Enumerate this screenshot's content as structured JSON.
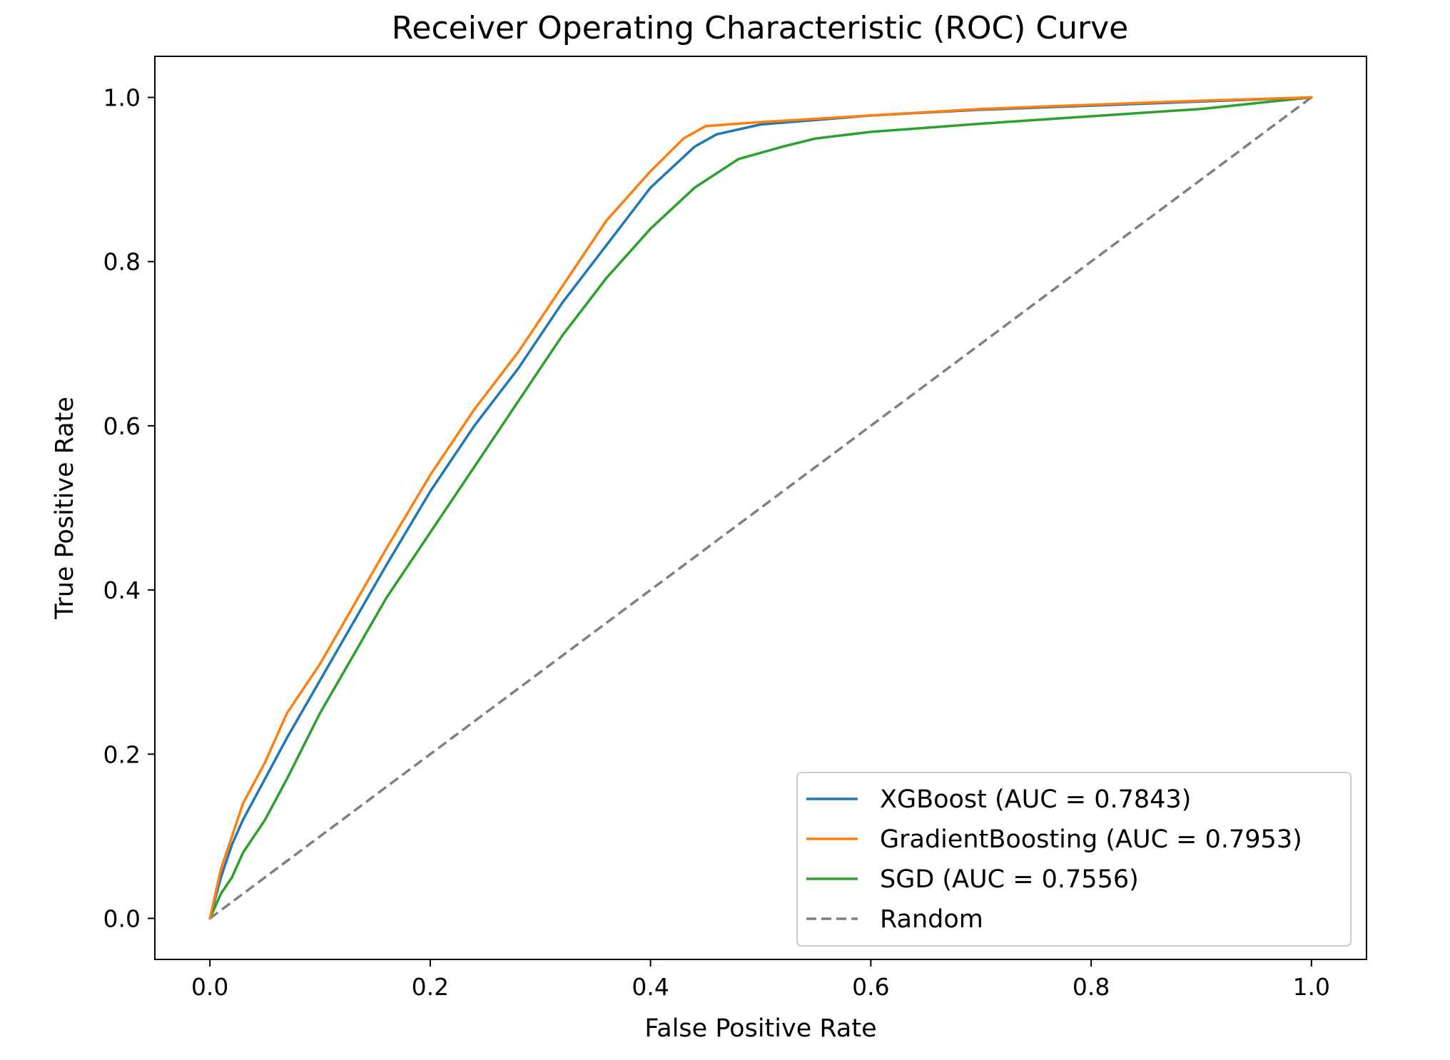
{
  "chart_data": {
    "type": "line",
    "title": "Receiver Operating Characteristic (ROC) Curve",
    "xlabel": "False Positive Rate",
    "ylabel": "True Positive Rate",
    "xlim": [
      -0.05,
      1.05
    ],
    "ylim": [
      -0.05,
      1.05
    ],
    "xticks": [
      0.0,
      0.2,
      0.4,
      0.6,
      0.8,
      1.0
    ],
    "yticks": [
      0.0,
      0.2,
      0.4,
      0.6,
      0.8,
      1.0
    ],
    "xtick_labels": [
      "0.0",
      "0.2",
      "0.4",
      "0.6",
      "0.8",
      "1.0"
    ],
    "ytick_labels": [
      "0.0",
      "0.2",
      "0.4",
      "0.6",
      "0.8",
      "1.0"
    ],
    "grid": false,
    "legend_position": "lower-right",
    "series": [
      {
        "name": "XGBoost (AUC = 0.7843)",
        "color": "#1f77b4",
        "style": "solid",
        "x": [
          0.0,
          0.01,
          0.02,
          0.03,
          0.05,
          0.07,
          0.1,
          0.13,
          0.16,
          0.2,
          0.24,
          0.28,
          0.32,
          0.36,
          0.4,
          0.44,
          0.46,
          0.5,
          0.6,
          0.7,
          0.8,
          0.9,
          1.0
        ],
        "y": [
          0.0,
          0.05,
          0.09,
          0.12,
          0.17,
          0.22,
          0.29,
          0.36,
          0.43,
          0.52,
          0.6,
          0.67,
          0.75,
          0.82,
          0.89,
          0.94,
          0.955,
          0.967,
          0.978,
          0.985,
          0.99,
          0.995,
          1.0
        ]
      },
      {
        "name": "GradientBoosting (AUC = 0.7953)",
        "color": "#ff7f0e",
        "style": "solid",
        "x": [
          0.0,
          0.01,
          0.02,
          0.03,
          0.05,
          0.07,
          0.1,
          0.13,
          0.16,
          0.2,
          0.24,
          0.28,
          0.32,
          0.36,
          0.4,
          0.43,
          0.45,
          0.5,
          0.6,
          0.7,
          0.8,
          0.9,
          1.0
        ],
        "y": [
          0.0,
          0.06,
          0.1,
          0.14,
          0.19,
          0.25,
          0.31,
          0.38,
          0.45,
          0.54,
          0.62,
          0.69,
          0.77,
          0.85,
          0.91,
          0.95,
          0.965,
          0.97,
          0.978,
          0.986,
          0.991,
          0.996,
          1.0
        ]
      },
      {
        "name": "SGD (AUC = 0.7556)",
        "color": "#2ca02c",
        "style": "solid",
        "x": [
          0.0,
          0.01,
          0.02,
          0.03,
          0.05,
          0.07,
          0.1,
          0.13,
          0.16,
          0.2,
          0.24,
          0.28,
          0.32,
          0.36,
          0.4,
          0.44,
          0.48,
          0.52,
          0.55,
          0.6,
          0.7,
          0.8,
          0.9,
          1.0
        ],
        "y": [
          0.0,
          0.03,
          0.05,
          0.08,
          0.12,
          0.17,
          0.25,
          0.32,
          0.39,
          0.47,
          0.55,
          0.63,
          0.71,
          0.78,
          0.84,
          0.89,
          0.925,
          0.94,
          0.95,
          0.958,
          0.968,
          0.977,
          0.986,
          1.0
        ]
      },
      {
        "name": "Random",
        "color": "#808080",
        "style": "dashed",
        "x": [
          0.0,
          1.0
        ],
        "y": [
          0.0,
          1.0
        ]
      }
    ]
  }
}
